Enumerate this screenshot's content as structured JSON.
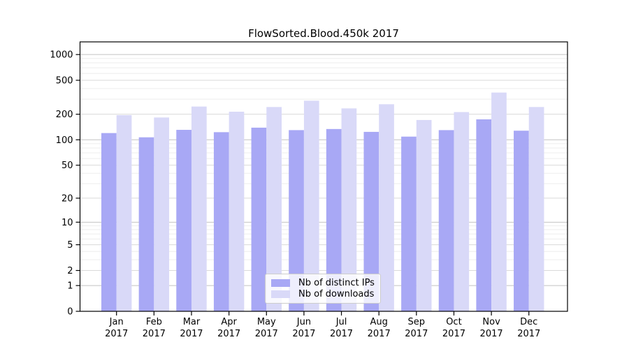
{
  "title": "FlowSorted.Blood.450k 2017",
  "colors": {
    "bar_distinct_ips": "#a8a8f5",
    "bar_downloads": "#d9d9f8",
    "grid_major": "#c2c2c2",
    "grid_labeled": "#dadada",
    "grid_minor": "#ededed",
    "axis": "#000000",
    "background": "#ffffff"
  },
  "chart_data": {
    "type": "bar",
    "title": "FlowSorted.Blood.450k 2017",
    "scale": "log1p",
    "grid": true,
    "legend_position": "bottom-center",
    "xlabel": "",
    "ylabel": "",
    "year": "2017",
    "categories": [
      "Jan",
      "Feb",
      "Mar",
      "Apr",
      "May",
      "Jun",
      "Jul",
      "Aug",
      "Sep",
      "Oct",
      "Nov",
      "Dec"
    ],
    "series": [
      {
        "name": "Nb of distinct IPs",
        "color": "#a8a8f5",
        "values": [
          120,
          107,
          131,
          123,
          139,
          130,
          134,
          124,
          109,
          130,
          174,
          128
        ]
      },
      {
        "name": "Nb of downloads",
        "color": "#d9d9f8",
        "values": [
          195,
          183,
          246,
          214,
          243,
          288,
          234,
          262,
          171,
          212,
          359,
          243
        ]
      }
    ],
    "yticks": [
      0,
      1,
      2,
      5,
      10,
      20,
      50,
      100,
      200,
      500,
      1000
    ],
    "ylim": [
      0,
      1400
    ]
  }
}
